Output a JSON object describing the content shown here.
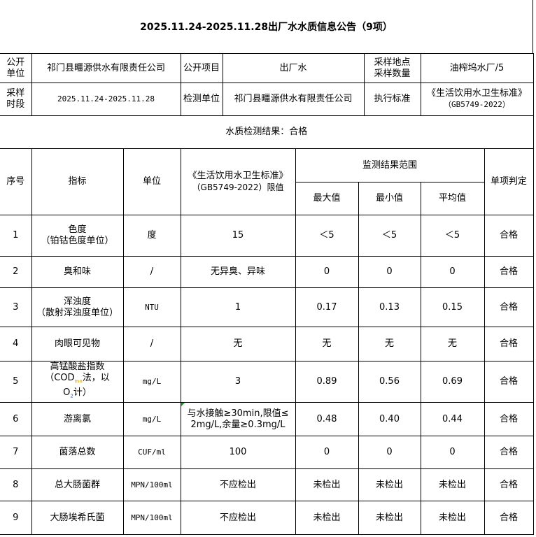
{
  "title": "2025.11.24-2025.11.28出厂水水质信息公告（9项）",
  "info": {
    "pub_unit_label": "公开\n单位",
    "pub_unit": "祁门县疅源供水有限责任公司",
    "pub_item_label": "公开项目",
    "pub_item": "出厂水",
    "site_label": "采样地点\n采样数量",
    "site": "油榨坞水厂/5",
    "period_label": "采样\n时段",
    "period": "2025.11.24-2025.11.28",
    "test_unit_label": "检测单位",
    "test_unit": "祁门县疅源供水有限责任公司",
    "standard_label": "执行标准",
    "standard": "《生活饮用水卫生标准》",
    "standard_code": "（GB5749-2022）"
  },
  "result_summary": "水质检测结果：合格",
  "headers": {
    "no": "序号",
    "indicator": "指标",
    "unit": "单位",
    "limit": "《生活饮用水卫生标准》",
    "limit2": "（GB5749-2022）限值",
    "range": "监测结果范围",
    "max": "最大值",
    "min": "最小值",
    "avg": "平均值",
    "judge": "单项判定"
  },
  "rows": [
    {
      "no": "1",
      "name": "色度",
      "name2": "（铂钴色度单位）",
      "unit": "度",
      "limit": "15",
      "max": "＜5",
      "min": "＜5",
      "avg": "＜5",
      "judge": "合格"
    },
    {
      "no": "2",
      "name": "臭和味",
      "name2": "",
      "unit": "/",
      "limit": "无异臭、异味",
      "max": "0",
      "min": "0",
      "avg": "0",
      "judge": "合格"
    },
    {
      "no": "3",
      "name": "浑浊度",
      "name2": "（散射浑浊度单位）",
      "unit": "NTU",
      "limit": "1",
      "max": "0.17",
      "min": "0.13",
      "avg": "0.15",
      "judge": "合格"
    },
    {
      "no": "4",
      "name": "肉眼可见物",
      "name2": "",
      "unit": "/",
      "limit": "无",
      "max": "无",
      "min": "无",
      "avg": "无",
      "judge": "合格"
    },
    {
      "no": "5",
      "name": "高锰酸盐指数",
      "name2": "（COD",
      "name2_sub": "mn",
      "name2_rest": "法，以",
      "name3": "O",
      "name3_sub": "2",
      "name3_rest": "计）",
      "unit": "mg/L",
      "limit": "3",
      "max": "0.89",
      "min": "0.56",
      "avg": "0.69",
      "judge": "合格"
    },
    {
      "no": "6",
      "name": "游离氯",
      "name2": "",
      "unit": "mg/L",
      "limit": "与水接触≥30min,限值≤",
      "limit_b": "2mg/L,余量≥0.3mg/L",
      "max": "0.48",
      "min": "0.40",
      "avg": "0.44",
      "judge": "合格"
    },
    {
      "no": "7",
      "name": "菌落总数",
      "name2": "",
      "unit": "CUF/ml",
      "limit": "100",
      "max": "0",
      "min": "0",
      "avg": "0",
      "judge": "合格"
    },
    {
      "no": "8",
      "name": "总大肠菌群",
      "name2": "",
      "unit": "MPN/100ml",
      "limit": "不应检出",
      "max": "未检出",
      "min": "未检出",
      "avg": "未检出",
      "judge": "合格"
    },
    {
      "no": "9",
      "name": "大肠埃希氏菌",
      "name2": "",
      "unit": "MPN/100ml",
      "limit": "不应检出",
      "max": "未检出",
      "min": "未检出",
      "avg": "未检出",
      "judge": "合格"
    }
  ]
}
